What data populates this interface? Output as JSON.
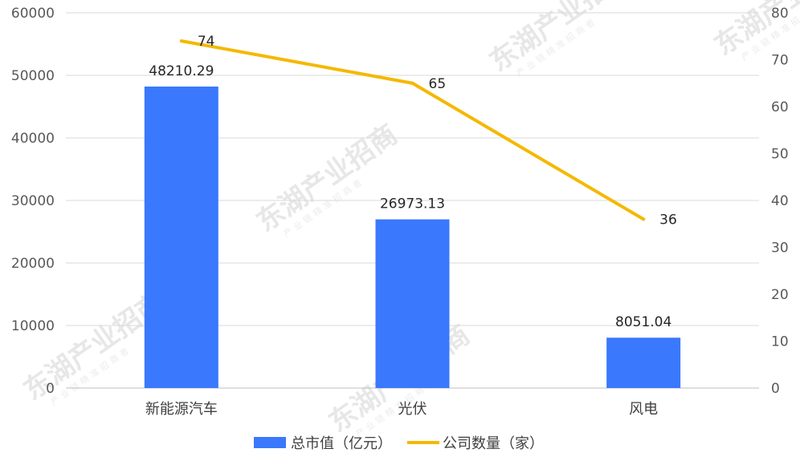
{
  "chart_data": {
    "type": "bar",
    "categories": [
      "新能源汽车",
      "光伏",
      "风电"
    ],
    "series": [
      {
        "name": "总市值（亿元）",
        "type": "bar",
        "axis": "left",
        "values": [
          48210.29,
          26973.13,
          8051.04
        ],
        "labels": [
          "48210.29",
          "26973.13",
          "8051.04"
        ],
        "color": "#3a78fd"
      },
      {
        "name": "公司数量（家）",
        "type": "line",
        "axis": "right",
        "values": [
          74,
          65,
          36
        ],
        "labels": [
          "74",
          "65",
          "36"
        ],
        "color": "#f5b800"
      }
    ],
    "ylim_left": [
      0,
      60000
    ],
    "ylim_right": [
      0,
      80
    ],
    "yticks_left": [
      "0",
      "10000",
      "20000",
      "30000",
      "40000",
      "50000",
      "60000"
    ],
    "yticks_right": [
      "0",
      "10",
      "20",
      "30",
      "40",
      "50",
      "60",
      "70",
      "80"
    ],
    "grid": true,
    "legend_position": "bottom"
  },
  "watermark": {
    "text": "东湖产业招商",
    "subtext": "产业链精准招商者"
  }
}
